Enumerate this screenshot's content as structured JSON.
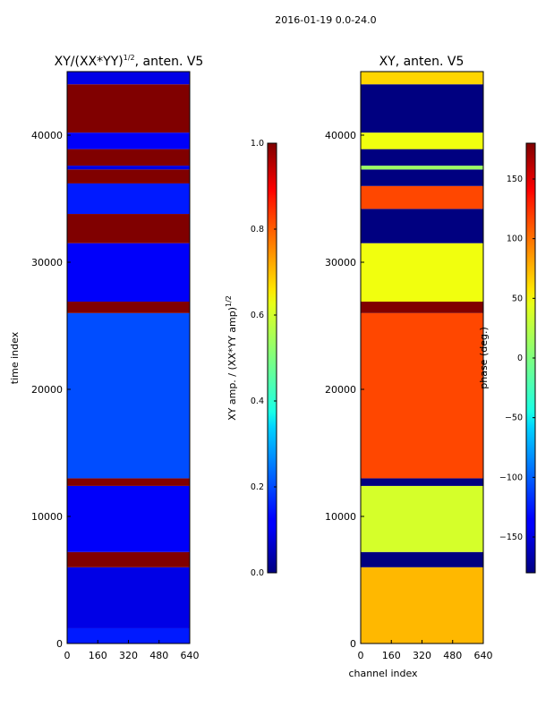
{
  "chart_data": {
    "suptitle": "2016-01-19 0.0-24.0",
    "panels": [
      {
        "type": "heatmap",
        "title_main": "XY/(XX*YY)",
        "title_sup": "1/2",
        "title_tail": ", anten. V5",
        "xlabel": "",
        "ylabel": "time index",
        "xlim": [
          0,
          640
        ],
        "ylim": [
          0,
          45000
        ],
        "xticks": [
          0,
          160,
          320,
          480,
          640
        ],
        "yticks": [
          0,
          10000,
          20000,
          30000,
          40000
        ],
        "value_range": [
          0,
          1
        ],
        "colorbar": {
          "label_main": "XY amp. / (XX*YY amp)",
          "label_sup": "1/2",
          "ticks": [
            "0.0",
            "0.2",
            "0.4",
            "0.6",
            "0.8",
            "1.0"
          ],
          "tick_values": [
            0,
            0.2,
            0.4,
            0.6,
            0.8,
            1.0
          ]
        },
        "bands": [
          {
            "y0": 0,
            "y1": 1200,
            "value": 0.15
          },
          {
            "y0": 1200,
            "y1": 6000,
            "value": 0.1
          },
          {
            "y0": 6000,
            "y1": 7200,
            "value": 1.0
          },
          {
            "y0": 7200,
            "y1": 12400,
            "value": 0.12
          },
          {
            "y0": 12400,
            "y1": 13000,
            "value": 1.0
          },
          {
            "y0": 13000,
            "y1": 26000,
            "value": 0.2
          },
          {
            "y0": 26000,
            "y1": 26900,
            "value": 1.0
          },
          {
            "y0": 26900,
            "y1": 31500,
            "value": 0.12
          },
          {
            "y0": 31500,
            "y1": 33800,
            "value": 1.0
          },
          {
            "y0": 33800,
            "y1": 36200,
            "value": 0.15
          },
          {
            "y0": 36200,
            "y1": 37300,
            "value": 1.0
          },
          {
            "y0": 37300,
            "y1": 37600,
            "value": 0.1
          },
          {
            "y0": 37600,
            "y1": 38900,
            "value": 1.0
          },
          {
            "y0": 38900,
            "y1": 40200,
            "value": 0.12
          },
          {
            "y0": 40200,
            "y1": 44000,
            "value": 1.0
          },
          {
            "y0": 44000,
            "y1": 45000,
            "value": 0.1
          }
        ]
      },
      {
        "type": "heatmap",
        "title_main": "XY, anten. V5",
        "xlabel": "channel index",
        "ylabel": "",
        "xlim": [
          0,
          640
        ],
        "ylim": [
          0,
          45000
        ],
        "xticks": [
          0,
          160,
          320,
          480,
          640
        ],
        "yticks": [
          0,
          10000,
          20000,
          30000,
          40000
        ],
        "value_range": [
          -180,
          180
        ],
        "colorbar": {
          "label_main": "phase (deg.)",
          "ticks": [
            "−150",
            "−100",
            "−50",
            "0",
            "50",
            "100",
            "150"
          ],
          "tick_values": [
            -150,
            -100,
            -50,
            0,
            50,
            100,
            150
          ]
        },
        "bands": [
          {
            "y0": 0,
            "y1": 6000,
            "value": 70
          },
          {
            "y0": 6000,
            "y1": 7200,
            "value": -180
          },
          {
            "y0": 7200,
            "y1": 12400,
            "value": 30
          },
          {
            "y0": 12400,
            "y1": 13000,
            "value": -180
          },
          {
            "y0": 13000,
            "y1": 26000,
            "value": 110
          },
          {
            "y0": 26000,
            "y1": 26900,
            "value": 180
          },
          {
            "y0": 26900,
            "y1": 31500,
            "value": 40
          },
          {
            "y0": 31500,
            "y1": 34200,
            "value": -180
          },
          {
            "y0": 34200,
            "y1": 36000,
            "value": 110
          },
          {
            "y0": 36000,
            "y1": 37300,
            "value": -180
          },
          {
            "y0": 37300,
            "y1": 37600,
            "value": 10
          },
          {
            "y0": 37600,
            "y1": 38900,
            "value": -180
          },
          {
            "y0": 38900,
            "y1": 40200,
            "value": 40
          },
          {
            "y0": 40200,
            "y1": 44000,
            "value": -180
          },
          {
            "y0": 44000,
            "y1": 45000,
            "value": 60
          }
        ]
      }
    ]
  }
}
